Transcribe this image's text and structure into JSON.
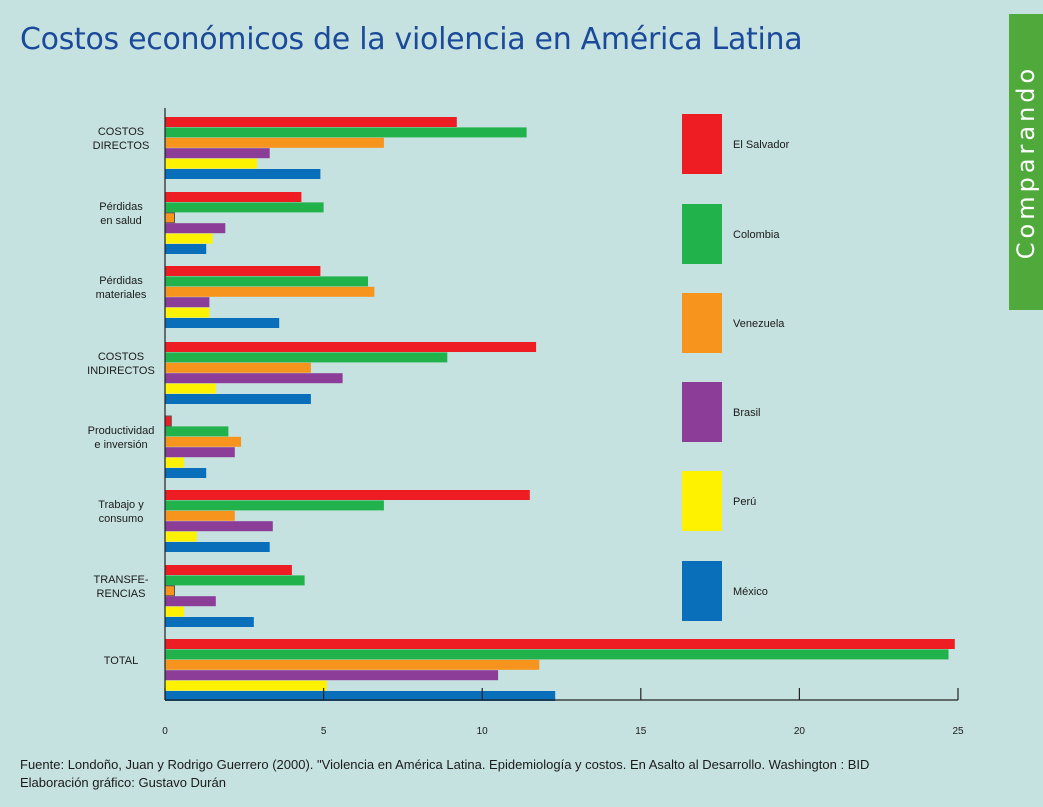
{
  "page": {
    "title": "Costos económicos de la violencia en América Latina",
    "section_tab": "Comparando",
    "source_line1": "Fuente: Londoño, Juan y Rodrigo Guerrero (2000). \"Violencia en América Latina. Epidemiología y costos. En Asalto al Desarrollo. Washington : BID",
    "source_line2": "Elaboración gráfico: Gustavo Durán"
  },
  "chart_data": {
    "type": "bar",
    "orientation": "horizontal",
    "title": "Costos económicos de la violencia en América Latina",
    "categories": [
      [
        "COSTOS",
        "DIRECTOS"
      ],
      [
        "Pérdidas",
        "en salud"
      ],
      [
        "Pérdidas",
        "materiales"
      ],
      [
        "COSTOS",
        "INDIRECTOS"
      ],
      [
        "Productividad",
        "e inversión"
      ],
      [
        "Trabajo y",
        "consumo"
      ],
      [
        "TRANSFE-",
        "RENCIAS"
      ],
      [
        "TOTAL"
      ]
    ],
    "series": [
      {
        "name": "El Salvador",
        "color": "#ee1d24",
        "values": [
          9.2,
          4.3,
          4.9,
          11.7,
          0.2,
          11.5,
          4.0,
          24.9
        ]
      },
      {
        "name": "Colombia",
        "color": "#21b24b",
        "values": [
          11.4,
          5.0,
          6.4,
          8.9,
          2.0,
          6.9,
          4.4,
          24.7
        ]
      },
      {
        "name": "Venezuela",
        "color": "#f7941d",
        "values": [
          6.9,
          0.3,
          6.6,
          4.6,
          2.4,
          2.2,
          0.3,
          11.8
        ]
      },
      {
        "name": "Brasil",
        "color": "#8b3d98",
        "values": [
          3.3,
          1.9,
          1.4,
          5.6,
          2.2,
          3.4,
          1.6,
          10.5
        ]
      },
      {
        "name": "Perú",
        "color": "#fff200",
        "values": [
          2.9,
          1.5,
          1.4,
          1.6,
          0.6,
          1.0,
          0.6,
          5.1
        ]
      },
      {
        "name": "México",
        "color": "#0a6fba",
        "values": [
          4.9,
          1.3,
          3.6,
          4.6,
          1.3,
          3.3,
          2.8,
          12.3
        ]
      }
    ],
    "xlim": [
      0,
      25
    ],
    "xticks": [
      0,
      5,
      10,
      15,
      20,
      25
    ],
    "legend_position": "right",
    "grid": false,
    "xlabel": "",
    "ylabel": ""
  }
}
